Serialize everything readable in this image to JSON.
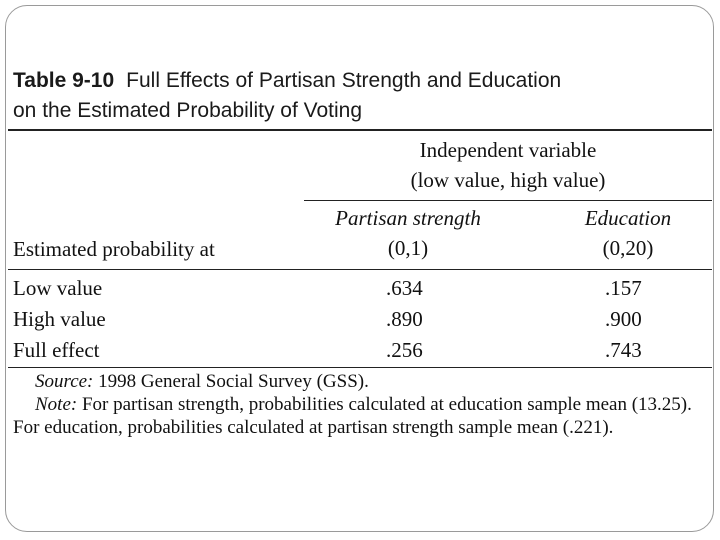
{
  "table": {
    "label": "Table 9-10",
    "title_line1": "Full Effects of Partisan Strength and Education",
    "title_line2": "on the Estimated Probability of Voting",
    "group_header_line1": "Independent variable",
    "group_header_line2": "(low value, high value)",
    "row_header": "Estimated probability at",
    "columns": [
      {
        "name": "Partisan strength",
        "range": "(0,1)"
      },
      {
        "name": "Education",
        "range": "(0,20)"
      }
    ],
    "rows": [
      {
        "label": "Low value",
        "values": [
          ".634",
          ".157"
        ]
      },
      {
        "label": "High value",
        "values": [
          ".890",
          ".900"
        ]
      },
      {
        "label": "Full effect",
        "values": [
          ".256",
          ".743"
        ]
      }
    ]
  },
  "notes": {
    "source_label": "Source:",
    "source_text": " 1998 General Social Survey (GSS).",
    "note_label": "Note:",
    "note_text": " For partisan strength, probabilities calculated at education sample mean (13.25). For education, probabilities calculated at partisan strength sample mean (.221)."
  }
}
